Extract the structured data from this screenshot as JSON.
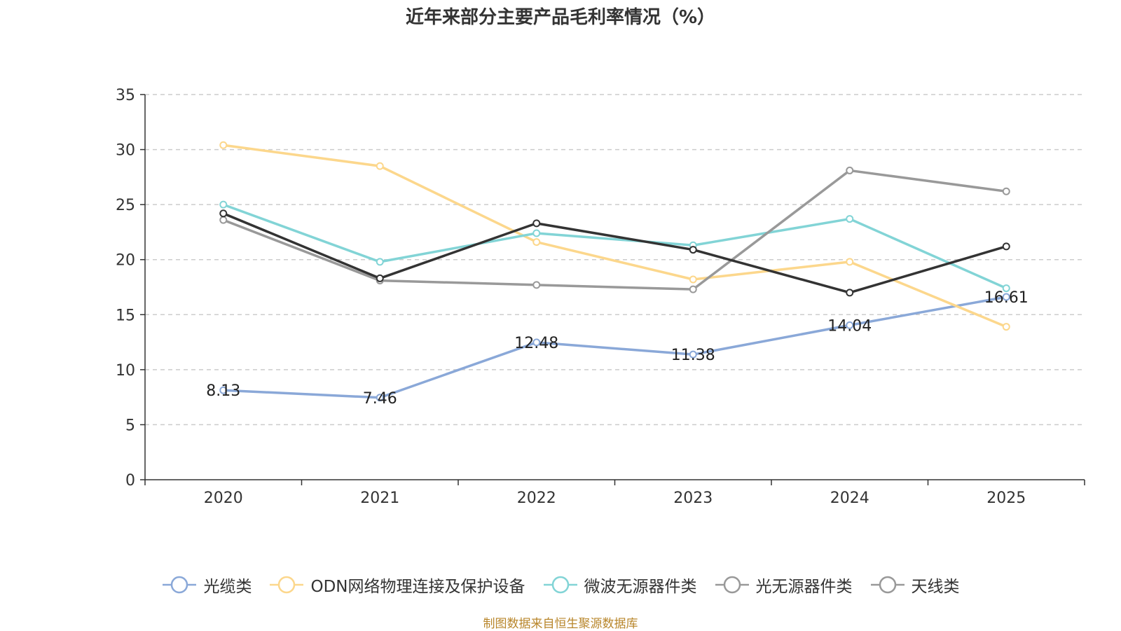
{
  "chart_data": {
    "type": "line",
    "title": "近年来部分主要产品毛利率情况（%）",
    "categories": [
      "2020",
      "2021",
      "2022",
      "2023",
      "2024",
      "2025"
    ],
    "ylim": [
      0,
      35
    ],
    "yticks": [
      0,
      5,
      10,
      15,
      20,
      25,
      30,
      35
    ],
    "grid": true,
    "legend_position": "bottom",
    "series": [
      {
        "name": "光缆类",
        "color": "#8aa8d8",
        "values": [
          8.13,
          7.46,
          12.48,
          11.38,
          14.04,
          16.61
        ],
        "labels": [
          "8.13",
          "7.46",
          "12.48",
          "11.38",
          "14.04",
          "16.61"
        ]
      },
      {
        "name": "ODN网络物理连接及保护设备",
        "color": "#fcd78c",
        "values": [
          30.4,
          28.5,
          21.6,
          18.2,
          19.8,
          13.9
        ]
      },
      {
        "name": "微波无源器件类",
        "color": "#82d4d6",
        "values": [
          25.0,
          19.8,
          22.4,
          21.3,
          23.7,
          17.4
        ]
      },
      {
        "name": "光无源器件类",
        "color": "#999999",
        "values": [
          23.6,
          18.1,
          17.7,
          17.3,
          28.1,
          26.2
        ]
      },
      {
        "name": "天线类",
        "color": "#333333",
        "legend_color": "#999999",
        "values": [
          24.2,
          18.3,
          23.3,
          20.9,
          17.0,
          21.2
        ]
      }
    ]
  },
  "source": "制图数据来自恒生聚源数据库"
}
